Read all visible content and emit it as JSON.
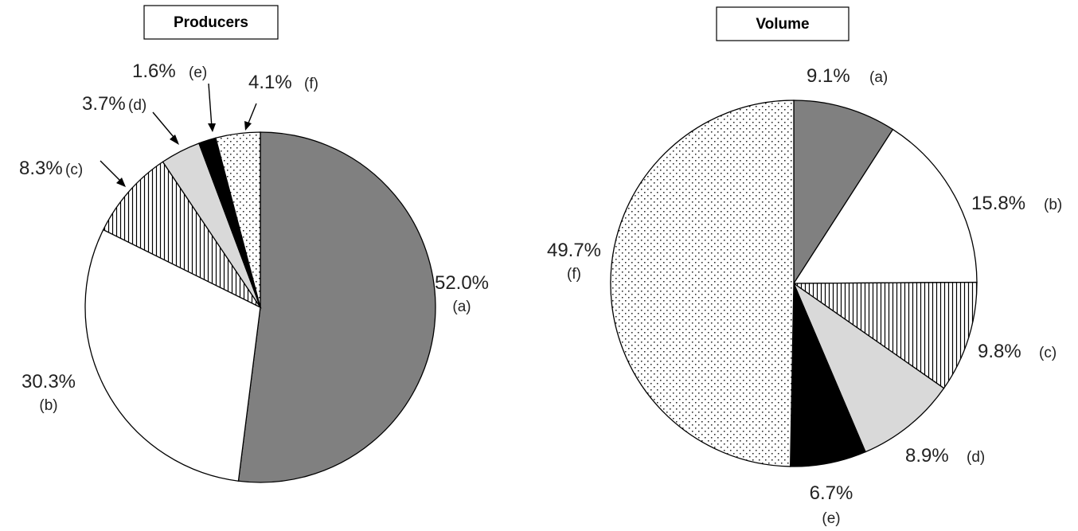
{
  "chart_data": [
    {
      "type": "pie",
      "title": "Producers",
      "slices": [
        {
          "label": "(a)",
          "value": 52.0,
          "value_label": "52.0%",
          "fill": "dark"
        },
        {
          "label": "(b)",
          "value": 30.3,
          "value_label": "30.3%",
          "fill": "white"
        },
        {
          "label": "(c)",
          "value": 8.3,
          "value_label": "8.3%",
          "fill": "vertical-lines"
        },
        {
          "label": "(d)",
          "value": 3.7,
          "value_label": "3.7%",
          "fill": "light"
        },
        {
          "label": "(e)",
          "value": 1.6,
          "value_label": "1.6%",
          "fill": "black"
        },
        {
          "label": "(f)",
          "value": 4.1,
          "value_label": "4.1%",
          "fill": "dots"
        }
      ]
    },
    {
      "type": "pie",
      "title": "Volume",
      "slices": [
        {
          "label": "(a)",
          "value": 9.1,
          "value_label": "9.1%",
          "fill": "dark"
        },
        {
          "label": "(b)",
          "value": 15.8,
          "value_label": "15.8%",
          "fill": "white"
        },
        {
          "label": "(c)",
          "value": 9.8,
          "value_label": "9.8%",
          "fill": "vertical-lines"
        },
        {
          "label": "(d)",
          "value": 8.9,
          "value_label": "8.9%",
          "fill": "light"
        },
        {
          "label": "(e)",
          "value": 6.7,
          "value_label": "6.7%",
          "fill": "black"
        },
        {
          "label": "(f)",
          "value": 49.7,
          "value_label": "49.7%",
          "fill": "dots"
        }
      ]
    }
  ],
  "colors": {
    "dark": "#808080",
    "white": "#ffffff",
    "light": "#d9d9d9",
    "black": "#000000",
    "pattern_bg": "#ffffff",
    "pattern_ink": "#000000"
  }
}
